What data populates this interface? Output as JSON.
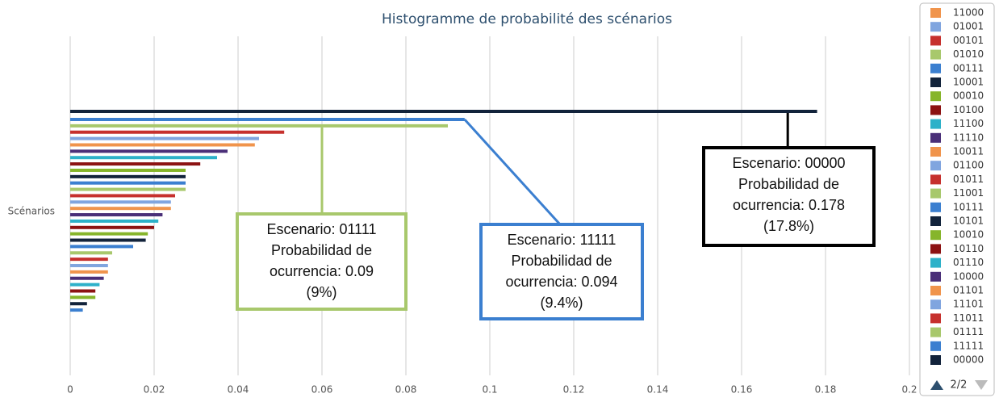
{
  "chart_data": {
    "type": "bar",
    "orientation": "horizontal",
    "title": "Histogramme de probabilité des scénarios",
    "y_label": "Scénarios",
    "categories": [
      "00000",
      "11111",
      "01111",
      "11011",
      "11101",
      "01101",
      "10000",
      "01110",
      "10110",
      "10010",
      "10101",
      "10111",
      "11001",
      "01011",
      "01100",
      "10011",
      "11110",
      "11100",
      "10100",
      "00010",
      "10001",
      "00111",
      "01010",
      "00101",
      "01001",
      "11000",
      null,
      null,
      null,
      null,
      null,
      null
    ],
    "values": [
      0.178,
      0.094,
      0.09,
      0.051,
      0.045,
      0.044,
      0.0375,
      0.035,
      0.031,
      0.0275,
      0.0275,
      0.0275,
      0.0275,
      0.025,
      0.024,
      0.024,
      0.022,
      0.021,
      0.02,
      0.0185,
      0.018,
      0.015,
      0.01,
      0.009,
      0.009,
      0.009,
      0.008,
      0.007,
      0.006,
      0.006,
      0.004,
      0.003
    ],
    "colors": [
      "#12233b",
      "#3b7fd0",
      "#a8c86c",
      "#c6302d",
      "#80a5df",
      "#f0944c",
      "#4a2f78",
      "#2db1c9",
      "#8c1212",
      "#86b52b",
      "#12233b",
      "#3b7fd0",
      "#a8c86c",
      "#c6302d",
      "#80a5df",
      "#f0944c",
      "#4a2f78",
      "#2db1c9",
      "#8c1212",
      "#86b52b",
      "#12233b",
      "#3b7fd0",
      "#a8c86c",
      "#c6302d",
      "#80a5df",
      "#f0944c",
      "#4a2f78",
      "#2db1c9",
      "#8c1212",
      "#86b52b",
      "#12233b",
      "#3b7fd0"
    ],
    "xlim": [
      0,
      0.2
    ],
    "xticks": [
      0,
      0.02,
      0.04,
      0.06,
      0.08,
      0.1,
      0.12,
      0.14,
      0.16,
      0.18,
      0.2
    ],
    "grid": true,
    "legend_page": "2/2",
    "annotations": [
      {
        "bar": 2,
        "color": "#a8c86c",
        "lines": [
          "Escenario: 01111",
          "Probabilidad de",
          "ocurrencia: 0.09",
          "(9%)"
        ]
      },
      {
        "bar": 1,
        "color": "#3b7fd0",
        "lines": [
          "Escenario: 11111",
          "Probabilidad de",
          "ocurrencia: 0.094",
          "(9.4%)"
        ]
      },
      {
        "bar": 0,
        "color": "#000000",
        "lines": [
          "Escenario: 00000",
          "Probabilidad de",
          "ocurrencia: 0.178",
          "(17.8%)"
        ]
      }
    ]
  }
}
